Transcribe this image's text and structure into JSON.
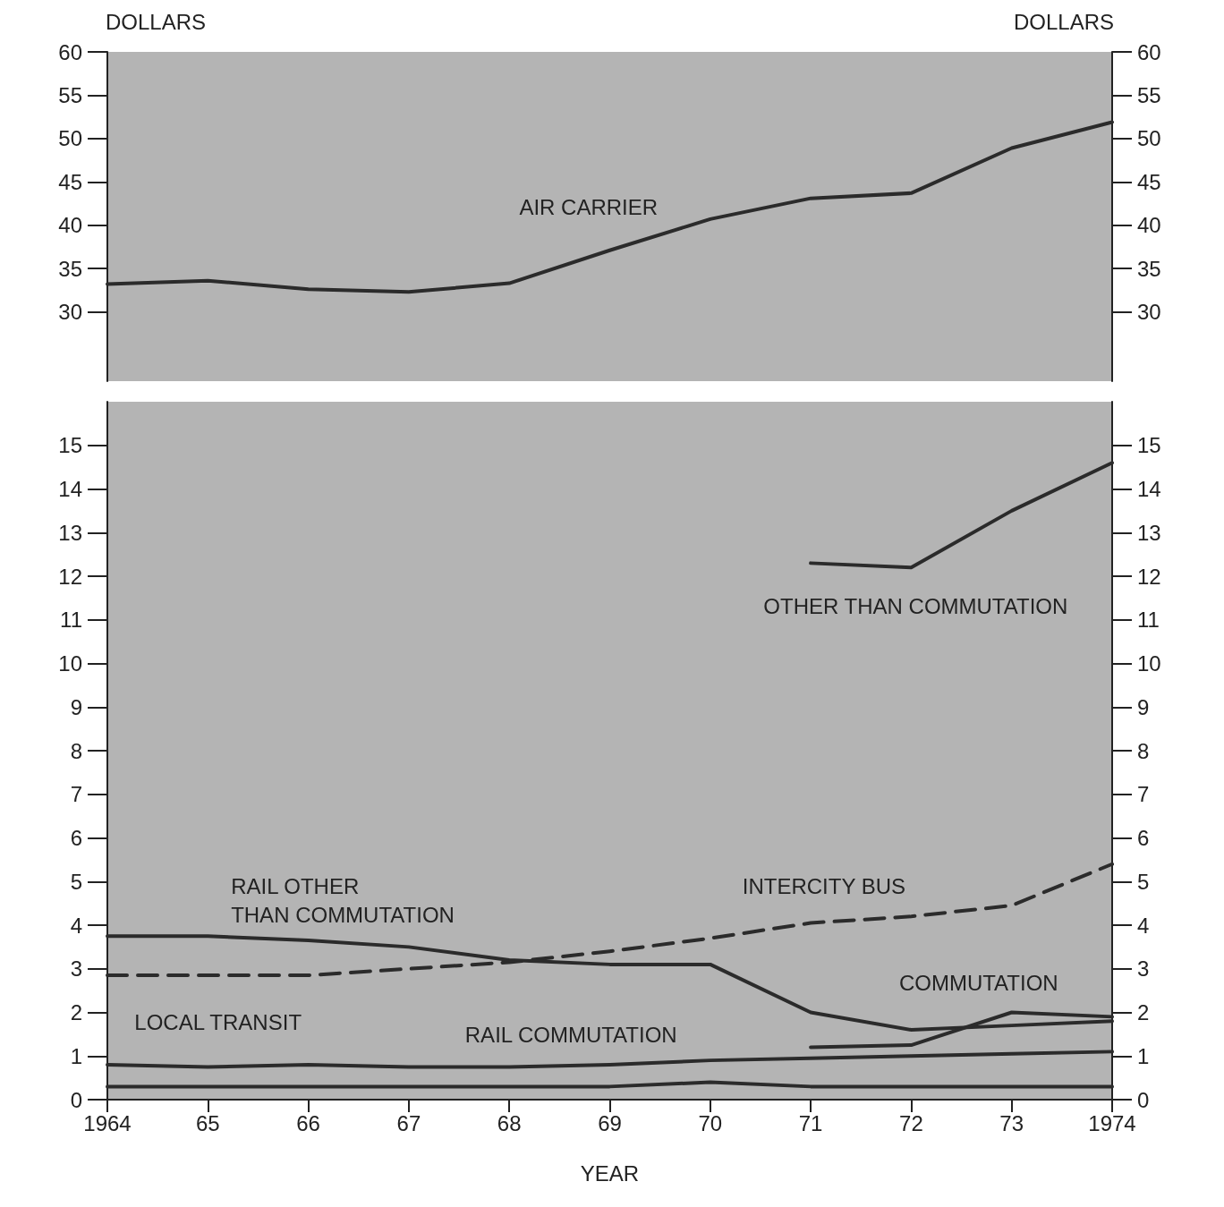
{
  "chart_data": [
    {
      "type": "line",
      "ylabel": "DOLLARS",
      "y2label": "DOLLARS",
      "x": [
        1964,
        1965,
        1966,
        1967,
        1968,
        1969,
        1970,
        1971,
        1972,
        1973,
        1974
      ],
      "xlim": [
        1964,
        1974
      ],
      "ylim": [
        22,
        60
      ],
      "yticks": [
        30,
        35,
        40,
        45,
        50,
        55,
        60
      ],
      "y2lim": [
        22,
        60
      ],
      "y2ticks": [
        30,
        35,
        40,
        45,
        50,
        55,
        60
      ],
      "tick_labels": "y",
      "grid": false,
      "marker": "none",
      "series": [
        {
          "color": "#2b2b2b",
          "values": [
            33.2,
            33.6,
            32.6,
            32.3,
            33.3,
            37.1,
            40.7,
            43.1,
            43.7,
            48.9,
            51.9
          ]
        }
      ],
      "annotations": [
        "AIR CARRIER"
      ]
    },
    {
      "type": "line",
      "xlabel": "YEAR",
      "x": [
        1964,
        1965,
        1966,
        1967,
        1968,
        1969,
        1970,
        1971,
        1972,
        1973,
        1974
      ],
      "xlim": [
        1964,
        1974
      ],
      "ylim": [
        0,
        16
      ],
      "yticks": [
        0,
        1,
        2,
        3,
        4,
        5,
        6,
        7,
        8,
        9,
        10,
        11,
        12,
        13,
        14,
        15
      ],
      "y2lim": [
        0,
        16
      ],
      "y2ticks": [
        0,
        1,
        2,
        3,
        4,
        5,
        6,
        7,
        8,
        9,
        10,
        11,
        12,
        13,
        14,
        15
      ],
      "xticks": [
        1964,
        {
          "value": 1965,
          "label": "65"
        },
        {
          "value": 1966,
          "label": "66"
        },
        {
          "value": 1967,
          "label": "67"
        },
        {
          "value": 1968,
          "label": "68"
        },
        {
          "value": 1969,
          "label": "69"
        },
        {
          "value": 1970,
          "label": "70"
        },
        {
          "value": 1971,
          "label": "71"
        },
        {
          "value": 1972,
          "label": "72"
        },
        {
          "value": 1973,
          "label": "73"
        },
        1974
      ],
      "grid": false,
      "marker": "none",
      "series": [
        {
          "color": "#2b2b2b",
          "values": [
            null,
            null,
            null,
            null,
            null,
            null,
            null,
            12.3,
            12.2,
            13.5,
            14.6
          ]
        },
        {
          "color": "#2b2b2b",
          "line_style": "dashed",
          "values": [
            2.85,
            2.85,
            2.85,
            3.0,
            3.15,
            3.4,
            3.7,
            4.05,
            4.2,
            4.45,
            5.4
          ]
        },
        {
          "color": "#2b2b2b",
          "values": [
            3.75,
            3.75,
            3.65,
            3.5,
            3.2,
            3.1,
            3.1,
            2.0,
            1.6,
            1.7,
            1.8
          ]
        },
        {
          "color": "#2b2b2b",
          "values": [
            null,
            null,
            null,
            null,
            null,
            null,
            null,
            1.2,
            1.25,
            2.0,
            1.9
          ]
        },
        {
          "color": "#2b2b2b",
          "values": [
            0.8,
            0.75,
            0.8,
            0.75,
            0.75,
            0.8,
            0.9,
            0.95,
            1.0,
            1.05,
            1.1
          ]
        },
        {
          "color": "#2b2b2b",
          "values": [
            0.3,
            0.3,
            0.3,
            0.3,
            0.3,
            0.3,
            0.4,
            0.3,
            0.3,
            0.3,
            0.3
          ]
        }
      ],
      "annotations": [
        "OTHER THAN COMMUTATION",
        "RAIL OTHER\nTHAN COMMUTATION",
        "INTERCITY BUS",
        "COMMUTATION",
        "LOCAL TRANSIT",
        "RAIL COMMUTATION"
      ]
    }
  ]
}
